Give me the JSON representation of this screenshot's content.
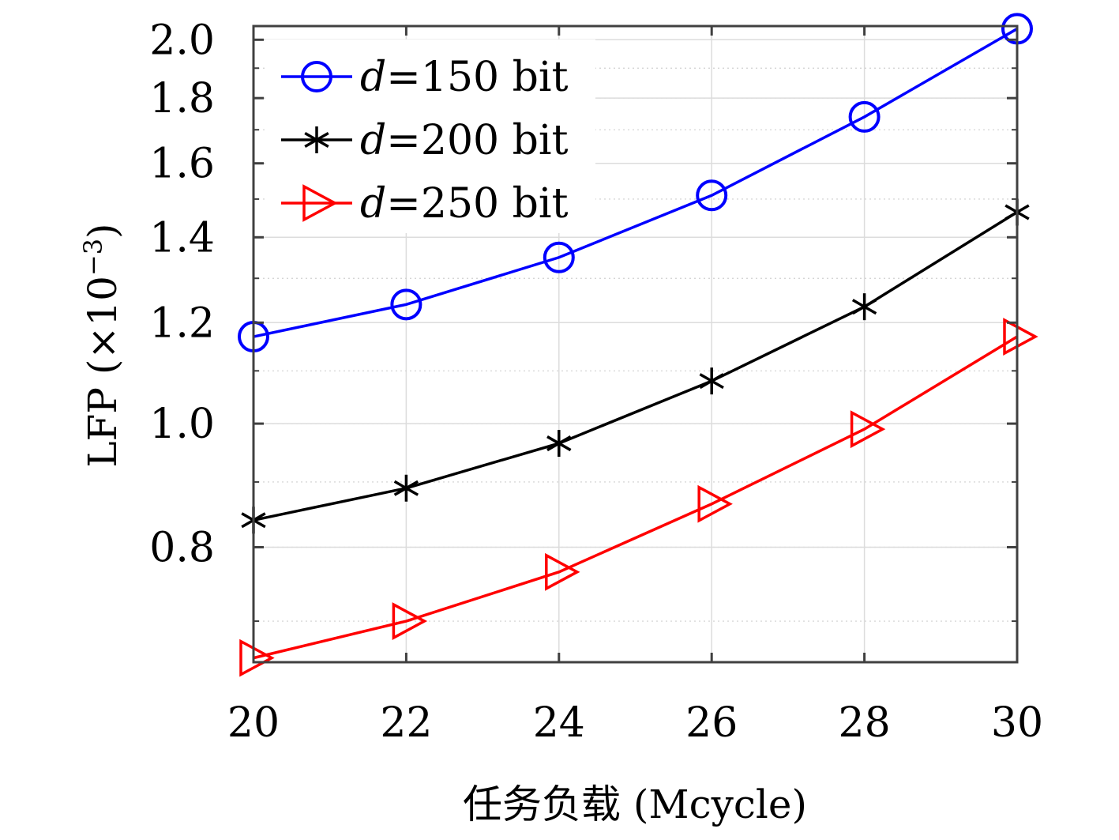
{
  "chart_data": {
    "type": "line",
    "title": "",
    "xlabel": "任务负载 (Mcycle)",
    "ylabel_main": "LFP (×10",
    "ylabel_exp": "−3",
    "ylabel_close": ")",
    "x": [
      20,
      22,
      24,
      26,
      28,
      30
    ],
    "xlim": [
      20,
      30
    ],
    "ylim": [
      0.65,
      2.05
    ],
    "y_scale": "log",
    "xticks": [
      "20",
      "22",
      "24",
      "26",
      "28",
      "30"
    ],
    "yticks": [
      "0.8",
      "1.0",
      "1.2",
      "1.4",
      "1.6",
      "1.8",
      "2.0"
    ],
    "ytick_values": [
      0.8,
      1.0,
      1.2,
      1.4,
      1.6,
      1.8,
      2.0
    ],
    "grid": true,
    "legend_position": "top-left",
    "series": [
      {
        "name_var": "d",
        "name_rest": "=150 bit",
        "marker": "circle",
        "color": "#0000ff",
        "values": [
          1.17,
          1.24,
          1.35,
          1.51,
          1.74,
          2.04
        ]
      },
      {
        "name_var": "d",
        "name_rest": "=200 bit",
        "marker": "asterisk",
        "color": "#000000",
        "values": [
          0.84,
          0.89,
          0.965,
          1.08,
          1.235,
          1.465
        ]
      },
      {
        "name_var": "d",
        "name_rest": "=250 bit",
        "marker": "triangle-right",
        "color": "#ff0000",
        "values": [
          0.655,
          0.7,
          0.765,
          0.865,
          0.99,
          1.17
        ]
      }
    ]
  }
}
